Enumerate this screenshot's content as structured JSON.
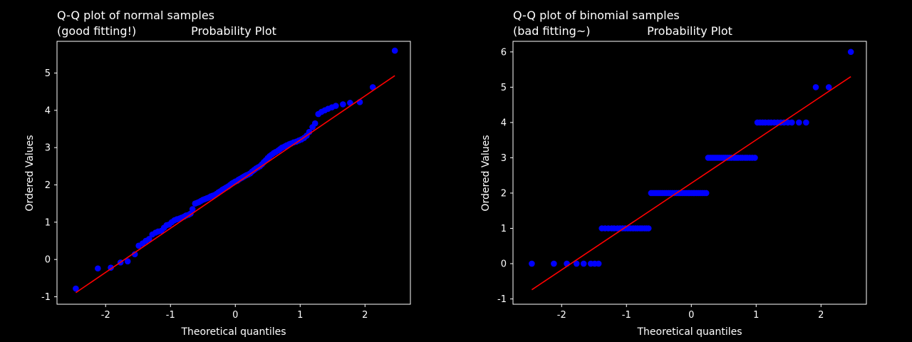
{
  "chart_data": [
    {
      "type": "scatter",
      "title_line1": "Q-Q plot of normal samples",
      "title_line2_left": "(good fitting!)",
      "title_line2_right": "Probability Plot",
      "xlabel": "Theoretical quantiles",
      "ylabel": "Ordered Values",
      "xlim": [
        -2.75,
        2.7
      ],
      "ylim": [
        -1.2,
        5.85
      ],
      "xticks": [
        -2,
        -1,
        0,
        1,
        2
      ],
      "yticks": [
        -1,
        0,
        1,
        2,
        3,
        4,
        5
      ],
      "xtick_labels": [
        "-2",
        "-1",
        "0",
        "1",
        "2"
      ],
      "ytick_labels": [
        "-1",
        "0",
        "1",
        "2",
        "3",
        "4",
        "5"
      ],
      "marker_color": "#0000ff",
      "line_color": "#ff0000",
      "fit_line": {
        "x": [
          -2.46,
          2.46
        ],
        "y": [
          -0.89,
          4.93
        ]
      },
      "points": {
        "x": [
          -2.46,
          -2.12,
          -1.92,
          -1.77,
          -1.66,
          -1.55,
          -1.49,
          -1.43,
          -1.38,
          -1.33,
          -1.28,
          -1.23,
          -1.19,
          -1.14,
          -1.1,
          -1.06,
          -1.02,
          -0.98,
          -0.94,
          -0.9,
          -0.86,
          -0.83,
          -0.79,
          -0.76,
          -0.72,
          -0.69,
          -0.66,
          -0.62,
          -0.59,
          -0.56,
          -0.53,
          -0.5,
          -0.47,
          -0.44,
          -0.41,
          -0.38,
          -0.35,
          -0.32,
          -0.29,
          -0.26,
          -0.23,
          -0.2,
          -0.17,
          -0.14,
          -0.11,
          -0.08,
          -0.05,
          -0.03,
          0.0,
          0.03,
          0.05,
          0.08,
          0.11,
          0.14,
          0.17,
          0.2,
          0.23,
          0.26,
          0.29,
          0.32,
          0.35,
          0.38,
          0.41,
          0.44,
          0.47,
          0.5,
          0.53,
          0.56,
          0.59,
          0.62,
          0.66,
          0.69,
          0.72,
          0.76,
          0.79,
          0.83,
          0.86,
          0.9,
          0.94,
          0.98,
          1.02,
          1.06,
          1.1,
          1.14,
          1.19,
          1.23,
          1.28,
          1.33,
          1.38,
          1.43,
          1.49,
          1.55,
          1.66,
          1.77,
          1.92,
          2.12,
          2.46
        ],
        "y": [
          -0.78,
          -0.24,
          -0.22,
          -0.08,
          -0.05,
          0.14,
          0.37,
          0.43,
          0.5,
          0.55,
          0.67,
          0.72,
          0.75,
          0.77,
          0.85,
          0.92,
          0.94,
          1.0,
          1.05,
          1.08,
          1.1,
          1.12,
          1.15,
          1.18,
          1.2,
          1.23,
          1.35,
          1.5,
          1.52,
          1.54,
          1.57,
          1.6,
          1.62,
          1.64,
          1.66,
          1.69,
          1.71,
          1.73,
          1.76,
          1.8,
          1.83,
          1.87,
          1.9,
          1.93,
          1.96,
          2.0,
          2.04,
          2.06,
          2.09,
          2.11,
          2.14,
          2.17,
          2.2,
          2.23,
          2.26,
          2.28,
          2.31,
          2.36,
          2.4,
          2.44,
          2.47,
          2.5,
          2.55,
          2.61,
          2.66,
          2.72,
          2.77,
          2.81,
          2.85,
          2.88,
          2.92,
          2.96,
          3.0,
          3.03,
          3.06,
          3.09,
          3.11,
          3.14,
          3.16,
          3.19,
          3.22,
          3.26,
          3.32,
          3.42,
          3.55,
          3.65,
          3.9,
          3.96,
          4.0,
          4.04,
          4.08,
          4.12,
          4.16,
          4.2,
          4.22,
          4.62,
          5.6
        ]
      }
    },
    {
      "type": "scatter",
      "title_line1": "Q-Q plot of binomial samples",
      "title_line2_left": "(bad fitting~)",
      "title_line2_right": "Probability Plot",
      "xlabel": "Theoretical quantiles",
      "ylabel": "Ordered Values",
      "xlim": [
        -2.75,
        2.7
      ],
      "ylim": [
        -1.15,
        6.3
      ],
      "xticks": [
        -2,
        -1,
        0,
        1,
        2
      ],
      "yticks": [
        -1,
        0,
        1,
        2,
        3,
        4,
        5,
        6
      ],
      "xtick_labels": [
        "-2",
        "-1",
        "0",
        "1",
        "2"
      ],
      "ytick_labels": [
        "-1",
        "0",
        "1",
        "2",
        "3",
        "4",
        "5",
        "6"
      ],
      "marker_color": "#0000ff",
      "line_color": "#ff0000",
      "fit_line": {
        "x": [
          -2.46,
          2.46
        ],
        "y": [
          -0.74,
          5.3
        ]
      },
      "points": {
        "x": [
          -2.46,
          -2.12,
          -1.92,
          -1.77,
          -1.66,
          -1.55,
          -1.49,
          -1.43,
          -1.38,
          -1.33,
          -1.28,
          -1.23,
          -1.19,
          -1.14,
          -1.1,
          -1.06,
          -1.02,
          -0.98,
          -0.94,
          -0.9,
          -0.86,
          -0.83,
          -0.79,
          -0.76,
          -0.72,
          -0.69,
          -0.66,
          -0.62,
          -0.59,
          -0.56,
          -0.53,
          -0.5,
          -0.47,
          -0.44,
          -0.41,
          -0.38,
          -0.35,
          -0.32,
          -0.29,
          -0.26,
          -0.23,
          -0.2,
          -0.17,
          -0.14,
          -0.11,
          -0.08,
          -0.05,
          -0.03,
          0.0,
          0.03,
          0.05,
          0.08,
          0.11,
          0.14,
          0.17,
          0.2,
          0.23,
          0.26,
          0.29,
          0.32,
          0.35,
          0.38,
          0.41,
          0.44,
          0.47,
          0.5,
          0.53,
          0.56,
          0.59,
          0.62,
          0.66,
          0.69,
          0.72,
          0.76,
          0.79,
          0.83,
          0.86,
          0.9,
          0.94,
          0.98,
          1.02,
          1.06,
          1.1,
          1.14,
          1.19,
          1.23,
          1.28,
          1.33,
          1.38,
          1.43,
          1.49,
          1.55,
          1.66,
          1.77,
          1.92,
          2.12,
          2.46
        ],
        "y": [
          0,
          0,
          0,
          0,
          0,
          0,
          0,
          0,
          1,
          1,
          1,
          1,
          1,
          1,
          1,
          1,
          1,
          1,
          1,
          1,
          1,
          1,
          1,
          1,
          1,
          1,
          1,
          2,
          2,
          2,
          2,
          2,
          2,
          2,
          2,
          2,
          2,
          2,
          2,
          2,
          2,
          2,
          2,
          2,
          2,
          2,
          2,
          2,
          2,
          2,
          2,
          2,
          2,
          2,
          2,
          2,
          2,
          3,
          3,
          3,
          3,
          3,
          3,
          3,
          3,
          3,
          3,
          3,
          3,
          3,
          3,
          3,
          3,
          3,
          3,
          3,
          3,
          3,
          3,
          3,
          4,
          4,
          4,
          4,
          4,
          4,
          4,
          4,
          4,
          4,
          4,
          4,
          4,
          4,
          5,
          5,
          6
        ]
      }
    }
  ]
}
